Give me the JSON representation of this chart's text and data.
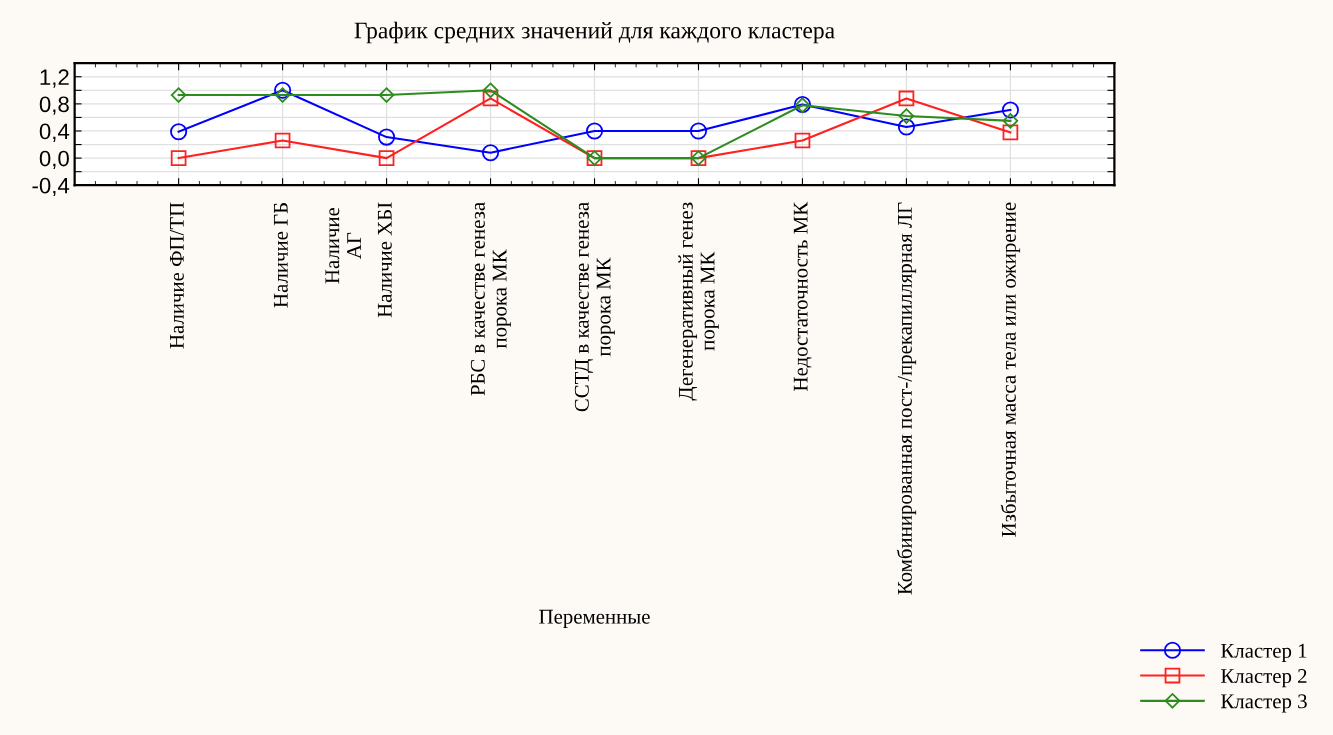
{
  "chart_data": {
    "type": "line",
    "title": "График средних значений для каждого кластера",
    "xlabel": "Переменные",
    "categories": [
      "Наличие ФП/ТП",
      "Наличие ГБ",
      "Наличие ХБI",
      "РБС в качестве генеза\nпорока МК",
      "ССТД в качестве генеза\nпорока МК",
      "Дегенеративный генез\nпорока МК",
      "Недостаточность МК",
      "Комбинированная пост-/прекапиллярная ЛГ",
      "Избыточная масса тела или ожирение"
    ],
    "series": [
      {
        "name": "Кластер 1",
        "color": "#0000ff",
        "marker": "circle",
        "values": [
          0.39,
          1.0,
          0.31,
          0.08,
          0.4,
          0.4,
          0.79,
          0.46,
          0.71
        ]
      },
      {
        "name": "Кластер 2",
        "color": "#ff2020",
        "marker": "square",
        "values": [
          0.0,
          0.26,
          0.0,
          0.88,
          0.0,
          0.0,
          0.26,
          0.88,
          0.38
        ]
      },
      {
        "name": "Кластер 3",
        "color": "#2e8b20",
        "marker": "diamond",
        "values": [
          0.93,
          0.93,
          0.93,
          1.0,
          0.0,
          0.0,
          0.78,
          0.62,
          0.55
        ]
      }
    ],
    "annotations": [
      "Наличие\nАГ"
    ],
    "ylim": [
      -0.4,
      1.4
    ],
    "yticks": [
      {
        "value": -0.4,
        "label": "-0,4"
      },
      {
        "value": -0.2,
        "label": null
      },
      {
        "value": 0.0,
        "label": "0,0"
      },
      {
        "value": 0.2,
        "label": null
      },
      {
        "value": 0.4,
        "label": "0,4"
      },
      {
        "value": 0.6,
        "label": null
      },
      {
        "value": 0.8,
        "label": "0,8"
      },
      {
        "value": 1.0,
        "label": null
      },
      {
        "value": 1.2,
        "label": "1,2"
      },
      {
        "value": 1.4,
        "label": null
      }
    ],
    "grid": true,
    "legend": "bottom right",
    "line_style": "solid"
  }
}
